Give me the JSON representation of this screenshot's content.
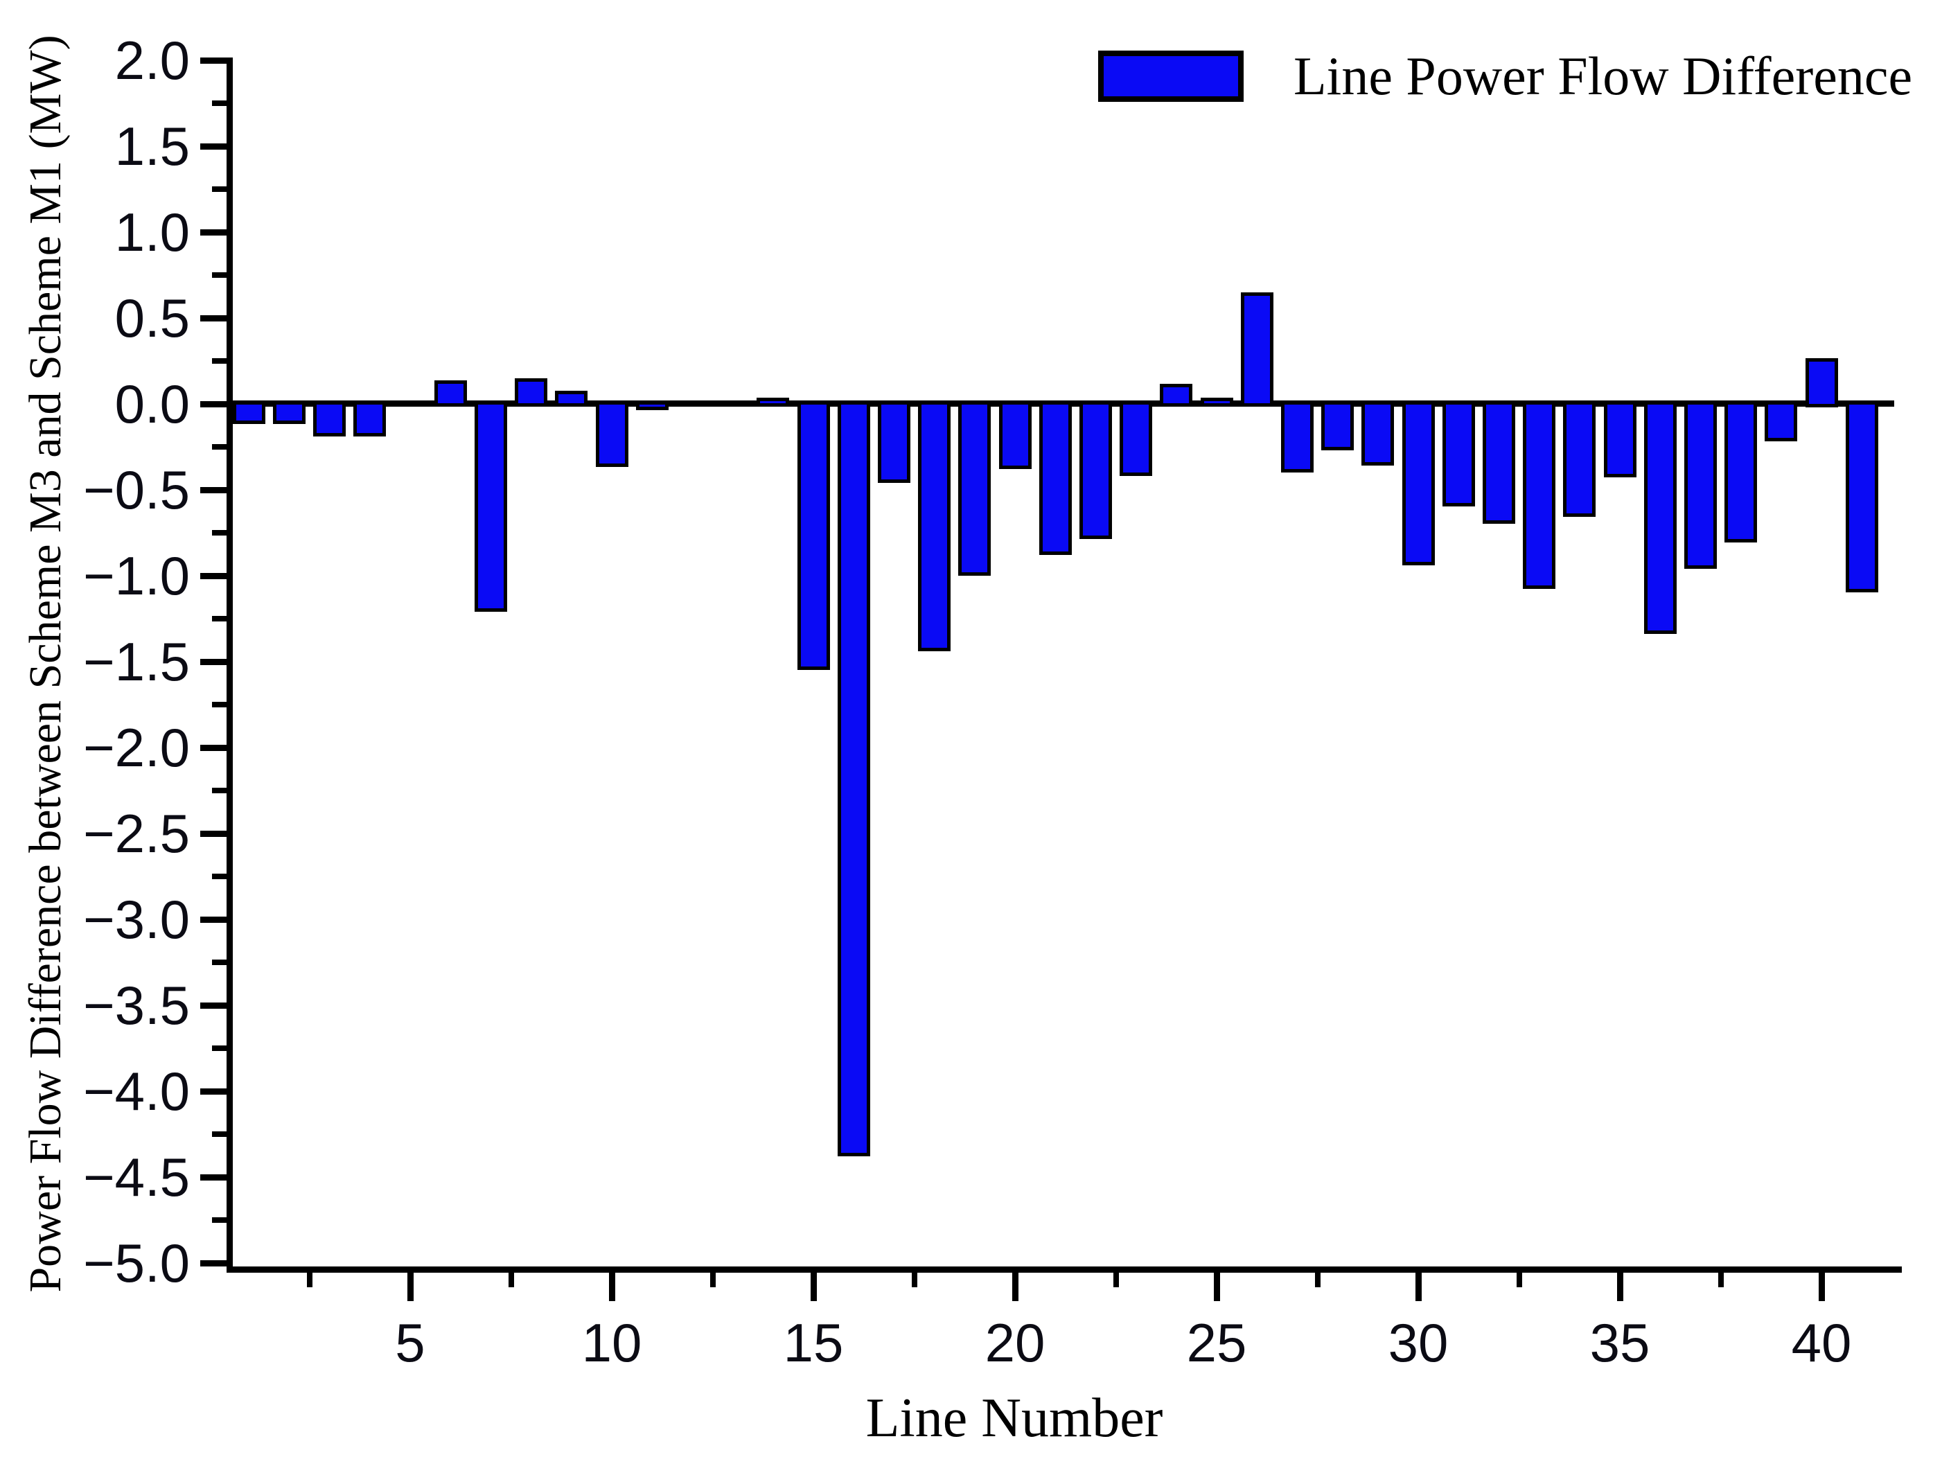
{
  "chart_data": {
    "type": "bar",
    "title": "",
    "xlabel": "Line Number",
    "ylabel": "Power Flow Difference between Scheme M3 and Scheme M1 (MW)",
    "legend_entries": [
      {
        "label": "Line Power Flow Difference",
        "color": "#0A0AF5"
      }
    ],
    "legend_position": "top-right",
    "grid": false,
    "bar_color": "#0A0AF5",
    "bar_edge_color": "#000000",
    "xlim": [
      0.5,
      41.8
    ],
    "ylim": [
      -5.0,
      2.0
    ],
    "x": [
      1,
      2,
      3,
      4,
      5,
      6,
      7,
      8,
      9,
      10,
      11,
      12,
      13,
      14,
      15,
      16,
      17,
      18,
      19,
      20,
      21,
      22,
      23,
      24,
      25,
      26,
      27,
      28,
      29,
      30,
      31,
      32,
      33,
      34,
      35,
      36,
      37,
      38,
      39,
      40,
      41
    ],
    "values": [
      -0.1,
      -0.1,
      -0.17,
      -0.17,
      0.0,
      0.12,
      -1.19,
      0.13,
      0.06,
      -0.35,
      -0.02,
      0.0,
      0.0,
      0.02,
      -1.53,
      -4.36,
      -0.44,
      -1.42,
      -0.98,
      -0.36,
      -0.86,
      -0.77,
      -0.4,
      0.1,
      0.02,
      0.63,
      -0.38,
      -0.25,
      -0.34,
      -0.92,
      -0.58,
      -0.68,
      -1.06,
      -0.64,
      -0.41,
      -1.32,
      -0.94,
      -0.79,
      -0.2,
      0.25,
      -1.08
    ],
    "x_major_ticks": [
      5,
      10,
      15,
      20,
      25,
      30,
      35,
      40
    ],
    "x_major_tick_labels": [
      "5",
      "10",
      "15",
      "20",
      "25",
      "30",
      "35",
      "40"
    ],
    "x_minor_ticks": [
      2.5,
      7.5,
      12.5,
      17.5,
      22.5,
      27.5,
      32.5,
      37.5
    ],
    "y_major_ticks": [
      2.0,
      1.5,
      1.0,
      0.5,
      0.0,
      -0.5,
      -1.0,
      -1.5,
      -2.0,
      -2.5,
      -3.0,
      -3.5,
      -4.0,
      -4.5,
      -5.0
    ],
    "y_tick_labels": [
      "2.0",
      "1.5",
      "1.0",
      "0.5",
      "0.0",
      "−0.5",
      "−1.0",
      "−1.5",
      "−2.0",
      "−2.5",
      "−3.0",
      "−3.5",
      "−4.0",
      "−4.5",
      "−5.0"
    ],
    "y_minor_ticks": [
      1.75,
      1.25,
      0.75,
      0.25,
      -0.25,
      -0.75,
      -1.25,
      -1.75,
      -2.25,
      -2.75,
      -3.25,
      -3.75,
      -4.25,
      -4.75
    ]
  }
}
